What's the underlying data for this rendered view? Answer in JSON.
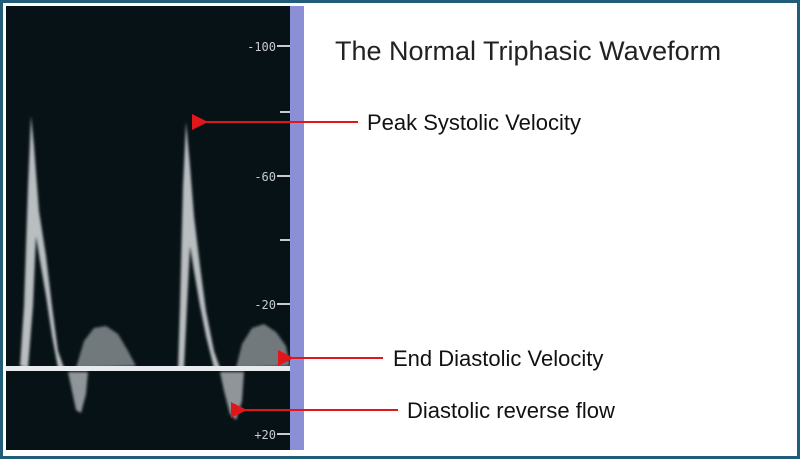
{
  "title": "The Normal Triphasic Waveform",
  "annotations": {
    "peak_systolic": "Peak Systolic Velocity",
    "end_diastolic": "End Diastolic Velocity",
    "diastolic_reverse": "Diastolic reverse flow"
  },
  "scale": {
    "ticks": [
      {
        "label": "-100"
      },
      {
        "label": "-60"
      },
      {
        "label": "-20"
      },
      {
        "label": "+20"
      }
    ]
  },
  "colors": {
    "frame": "#1f5d78",
    "arrow": "#e0161b",
    "scale_bar": "#8a8fd6",
    "background": "#071217",
    "waveform": "#d8dcde"
  }
}
